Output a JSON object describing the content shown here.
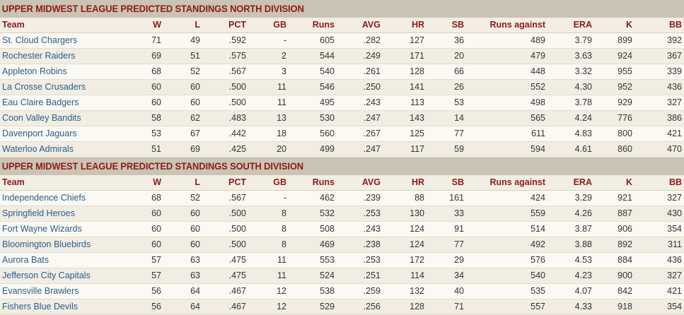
{
  "columns": [
    "Team",
    "W",
    "L",
    "PCT",
    "GB",
    "Runs",
    "AVG",
    "HR",
    "SB",
    "Runs against",
    "ERA",
    "K",
    "BB"
  ],
  "divisions": [
    {
      "title": "UPPER MIDWEST LEAGUE PREDICTED STANDINGS NORTH DIVISION",
      "rows": [
        [
          "St. Cloud Chargers",
          "71",
          "49",
          ".592",
          "-",
          "605",
          ".282",
          "127",
          "36",
          "489",
          "3.79",
          "899",
          "392"
        ],
        [
          "Rochester Raiders",
          "69",
          "51",
          ".575",
          "2",
          "544",
          ".249",
          "171",
          "20",
          "479",
          "3.63",
          "924",
          "367"
        ],
        [
          "Appleton Robins",
          "68",
          "52",
          ".567",
          "3",
          "540",
          ".261",
          "128",
          "66",
          "448",
          "3.32",
          "955",
          "339"
        ],
        [
          "La Crosse Crusaders",
          "60",
          "60",
          ".500",
          "11",
          "546",
          ".250",
          "141",
          "26",
          "552",
          "4.30",
          "952",
          "436"
        ],
        [
          "Eau Claire Badgers",
          "60",
          "60",
          ".500",
          "11",
          "495",
          ".243",
          "113",
          "53",
          "498",
          "3.78",
          "929",
          "327"
        ],
        [
          "Coon Valley Bandits",
          "58",
          "62",
          ".483",
          "13",
          "530",
          ".247",
          "143",
          "14",
          "565",
          "4.24",
          "776",
          "386"
        ],
        [
          "Davenport Jaguars",
          "53",
          "67",
          ".442",
          "18",
          "560",
          ".267",
          "125",
          "77",
          "611",
          "4.83",
          "800",
          "421"
        ],
        [
          "Waterloo Admirals",
          "51",
          "69",
          ".425",
          "20",
          "499",
          ".247",
          "117",
          "59",
          "594",
          "4.61",
          "860",
          "470"
        ]
      ]
    },
    {
      "title": "UPPER MIDWEST LEAGUE PREDICTED STANDINGS SOUTH DIVISION",
      "rows": [
        [
          "Independence Chiefs",
          "68",
          "52",
          ".567",
          "-",
          "462",
          ".239",
          "88",
          "161",
          "424",
          "3.29",
          "921",
          "327"
        ],
        [
          "Springfield Heroes",
          "60",
          "60",
          ".500",
          "8",
          "532",
          ".253",
          "130",
          "33",
          "559",
          "4.26",
          "887",
          "430"
        ],
        [
          "Fort Wayne Wizards",
          "60",
          "60",
          ".500",
          "8",
          "508",
          ".243",
          "124",
          "91",
          "514",
          "3.87",
          "906",
          "354"
        ],
        [
          "Bloomington Bluebirds",
          "60",
          "60",
          ".500",
          "8",
          "469",
          ".238",
          "124",
          "77",
          "492",
          "3.88",
          "892",
          "311"
        ],
        [
          "Aurora Bats",
          "57",
          "63",
          ".475",
          "11",
          "553",
          ".253",
          "172",
          "29",
          "576",
          "4.53",
          "884",
          "436"
        ],
        [
          "Jefferson City Capitals",
          "57",
          "63",
          ".475",
          "11",
          "524",
          ".251",
          "114",
          "34",
          "540",
          "4.23",
          "900",
          "327"
        ],
        [
          "Evansville Brawlers",
          "56",
          "64",
          ".467",
          "12",
          "538",
          ".259",
          "132",
          "40",
          "535",
          "4.07",
          "842",
          "421"
        ],
        [
          "Fishers Blue Devils",
          "56",
          "64",
          ".467",
          "12",
          "529",
          ".256",
          "128",
          "71",
          "557",
          "4.33",
          "918",
          "354"
        ]
      ]
    }
  ]
}
